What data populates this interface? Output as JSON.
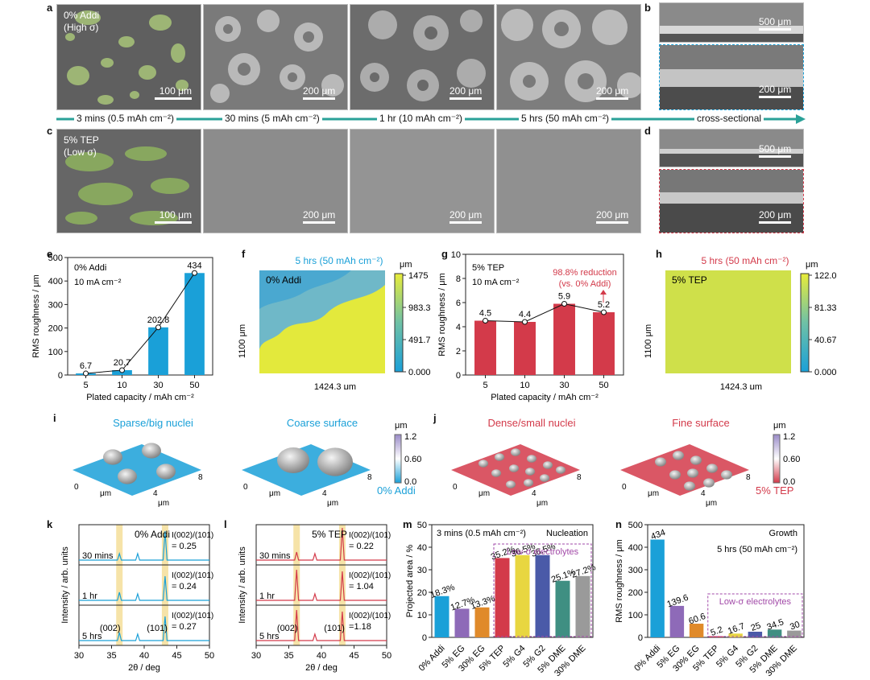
{
  "panels": {
    "a": "a",
    "b": "b",
    "c": "c",
    "d": "d",
    "e": "e",
    "f": "f",
    "g": "g",
    "h": "h",
    "i": "i",
    "j": "j",
    "k": "k",
    "l": "l",
    "m": "m",
    "n": "n"
  },
  "sem": {
    "row_a_label": "0% Addi",
    "row_a_sub": "(High σ)",
    "row_c_label": "5% TEP",
    "row_c_sub": "(Low σ)",
    "scale_100": "100 μm",
    "scale_200": "200 μm",
    "scale_500": "500 μm",
    "times": [
      "3 mins (0.5 mAh cm⁻²)",
      "30 mins (5 mAh cm⁻²)",
      "1 hr (10 mAh cm⁻²)",
      "5 hrs (50 mAh cm⁻²)",
      "cross-sectional"
    ],
    "colors": {
      "arrow": "#2aa198",
      "addi": "#1aa0d8",
      "tep": "#d33a4a"
    }
  },
  "chart_data": [
    {
      "id": "e",
      "type": "bar",
      "title": "",
      "legend_text": [
        "0% Addi",
        "10 mA cm⁻²"
      ],
      "xlabel": "Plated capacity / mAh cm⁻²",
      "ylabel": "RMS roughness / μm",
      "categories": [
        "5",
        "10",
        "30",
        "50"
      ],
      "values": [
        6.7,
        20.7,
        202.8,
        434
      ],
      "data_labels": [
        "6.7",
        "20.7",
        "202.8",
        "434"
      ],
      "ylim": [
        0,
        500
      ],
      "yticks": [
        0,
        100,
        200,
        300,
        400,
        500
      ],
      "color": "#1aa0d8",
      "line_overlay": true
    },
    {
      "id": "g",
      "type": "bar",
      "title": "",
      "legend_text": [
        "5% TEP",
        "10 mA cm⁻²"
      ],
      "annotation": [
        "98.8% reduction",
        "(vs. 0% Addi)"
      ],
      "xlabel": "Plated capacity / mAh cm⁻²",
      "ylabel": "RMS roughness / μm",
      "categories": [
        "5",
        "10",
        "30",
        "50"
      ],
      "values": [
        4.5,
        4.4,
        5.9,
        5.2
      ],
      "data_labels": [
        "4.5",
        "4.4",
        "5.9",
        "5.2"
      ],
      "ylim": [
        0,
        10
      ],
      "yticks": [
        0,
        2,
        4,
        6,
        8,
        10
      ],
      "color": "#d33a4a",
      "line_overlay": true
    },
    {
      "id": "f",
      "type": "heatmap",
      "title": "5 hrs (50 mAh cm⁻²)",
      "label": "0% Addi",
      "xlabel": "1424.3 μm",
      "ylabel": "1100 μm",
      "unit": "μm",
      "colorbar_ticks": [
        "1475",
        "983.3",
        "491.7",
        "0.000"
      ]
    },
    {
      "id": "h",
      "type": "heatmap",
      "title": "5 hrs (50 mAh cm⁻²)",
      "label": "5% TEP",
      "xlabel": "1424.3 μm",
      "ylabel": "1100 μm",
      "unit": "μm",
      "colorbar_ticks": [
        "122.0",
        "81.33",
        "40.67",
        "0.000"
      ]
    },
    {
      "id": "i",
      "type": "surface",
      "titles": [
        "Sparse/big nuclei",
        "Coarse surface"
      ],
      "label": "0% Addi",
      "axis_unit": "μm",
      "axis_ticks": [
        "0",
        "4",
        "8"
      ],
      "unit": "μm",
      "colorbar_ticks": [
        "1.2",
        "0.60",
        "0.0"
      ]
    },
    {
      "id": "j",
      "type": "surface",
      "titles": [
        "Dense/small nuclei",
        "Fine surface"
      ],
      "label": "5% TEP",
      "axis_unit": "μm",
      "axis_ticks": [
        "0",
        "4",
        "8"
      ],
      "unit": "μm",
      "colorbar_ticks": [
        "1.2",
        "0.60",
        "0.0"
      ]
    },
    {
      "id": "k",
      "type": "line",
      "title": "0% Addi",
      "xlabel": "2θ / deg",
      "ylabel": "Intensity / arb. units",
      "xlim": [
        30,
        50
      ],
      "xticks": [
        30,
        35,
        40,
        45,
        50
      ],
      "series": [
        {
          "name": "30 mins",
          "ratio": "= 0.25"
        },
        {
          "name": "1 hr",
          "ratio": "=  0.24"
        },
        {
          "name": "5 hrs",
          "ratio": "= 0.27"
        }
      ],
      "ratio_label": "I(002)/(101)",
      "peaks": {
        "(002)": 36.2,
        "(101)": 43.2,
        "minor": 39.0
      },
      "color": "#1aa0d8"
    },
    {
      "id": "l",
      "type": "line",
      "title": "5% TEP",
      "xlabel": "2θ / deg",
      "ylabel": "Intensity / arb. units",
      "xlim": [
        30,
        50
      ],
      "xticks": [
        30,
        35,
        40,
        45,
        50
      ],
      "series": [
        {
          "name": "30 mins",
          "ratio": "= 0.22"
        },
        {
          "name": "1 hr",
          "ratio": "= 1.04"
        },
        {
          "name": "5 hrs",
          "ratio": "=1.18"
        }
      ],
      "ratio_label": "I(002)/(101)",
      "peaks": {
        "(002)": 36.2,
        "(101)": 43.2,
        "minor": 39.0
      },
      "color": "#d33a4a"
    },
    {
      "id": "m",
      "type": "bar",
      "title": "3 mins (0.5 mAh cm⁻²)",
      "corner": "Nucleation",
      "group_label": "Low-σ electrolytes",
      "xlabel": "",
      "ylabel": "Projected area / %",
      "categories": [
        "0% Addi",
        "5% EG",
        "30% EG",
        "5% TEP",
        "5% G4",
        "5% G2",
        "5% DME",
        "30% DME"
      ],
      "values": [
        18.3,
        12.7,
        13.3,
        35.2,
        36.5,
        36.5,
        25.1,
        27.2
      ],
      "data_labels": [
        "18.3%",
        "12.7%",
        "13.3%",
        "35.2%",
        "36.5%",
        "36.5%",
        "25.1%",
        "27.2%"
      ],
      "ylim": [
        0,
        50
      ],
      "yticks": [
        0,
        10,
        20,
        30,
        40,
        50
      ],
      "colors": [
        "#1aa0d8",
        "#8e6ab8",
        "#e08a2a",
        "#d33a4a",
        "#e8d640",
        "#4a5aa8",
        "#3f8f82",
        "#9a9a9a"
      ]
    },
    {
      "id": "n",
      "type": "bar",
      "title": "5 hrs (50 mAh cm⁻²)",
      "corner": "Growth",
      "group_label": "Low-σ electrolytes",
      "xlabel": "",
      "ylabel": "RMS roughness / μm",
      "categories": [
        "0% Addi",
        "5% EG",
        "30% EG",
        "5% TEP",
        "5% G4",
        "5% G2",
        "5% DME",
        "30% DME"
      ],
      "values": [
        434,
        139.6,
        60.6,
        5.2,
        16.7,
        25,
        34.5,
        30
      ],
      "data_labels": [
        "434",
        "139.6",
        "60.6",
        "5.2",
        "16.7",
        "25",
        "34.5",
        "30"
      ],
      "ylim": [
        0,
        500
      ],
      "yticks": [
        0,
        100,
        200,
        300,
        400,
        500
      ],
      "colors": [
        "#1aa0d8",
        "#8e6ab8",
        "#e08a2a",
        "#d33a4a",
        "#e8d640",
        "#4a5aa8",
        "#3f8f82",
        "#9a9a9a"
      ]
    }
  ]
}
